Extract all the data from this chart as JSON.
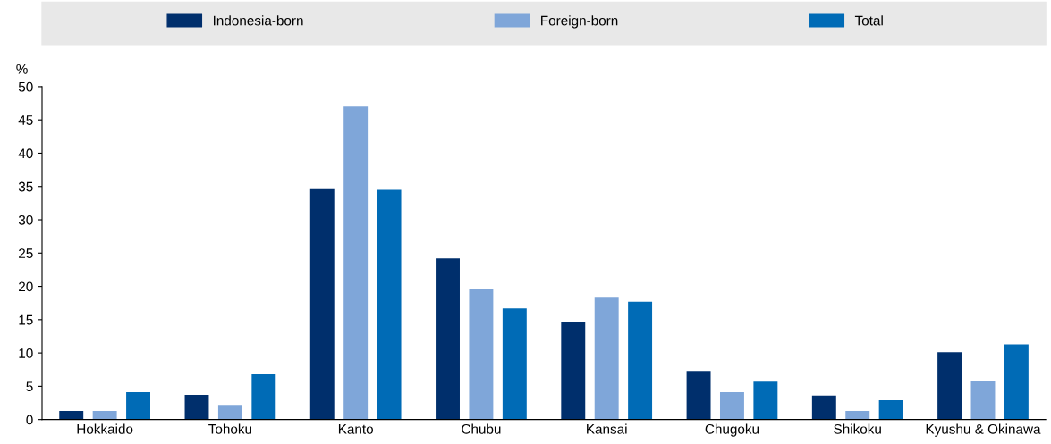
{
  "chart_data": {
    "type": "bar",
    "ylabel": "%",
    "categories": [
      "Hokkaido",
      "Tohoku",
      "Kanto",
      "Chubu",
      "Kansai",
      "Chugoku",
      "Shikoku",
      "Kyushu & Okinawa"
    ],
    "series": [
      {
        "name": "Indonesia-born",
        "color": "#002f6c",
        "values": [
          1.3,
          3.7,
          34.6,
          24.2,
          14.7,
          7.3,
          3.6,
          10.1
        ]
      },
      {
        "name": "Foreign-born",
        "color": "#7fa6d9",
        "values": [
          1.3,
          2.2,
          47.0,
          19.6,
          18.3,
          4.1,
          1.3,
          5.8
        ]
      },
      {
        "name": "Total",
        "color": "#006bb6",
        "values": [
          4.1,
          6.8,
          34.5,
          16.7,
          17.7,
          5.7,
          2.9,
          11.3
        ]
      }
    ],
    "ylim": [
      0,
      50
    ],
    "yticks": [
      0,
      5,
      10,
      15,
      20,
      25,
      30,
      35,
      40,
      45,
      50
    ],
    "legend": "top",
    "grid": false
  }
}
